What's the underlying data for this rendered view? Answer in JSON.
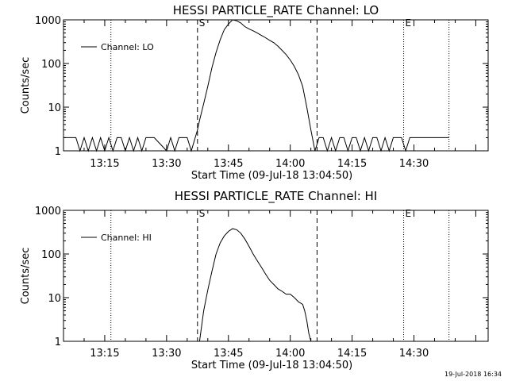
{
  "chart_data": [
    {
      "type": "line",
      "title": "HESSI PARTICLE_RATE Channel: LO",
      "xlabel": "Start Time (09-Jul-18 13:04:50)",
      "ylabel": "Counts/sec",
      "yscale": "log",
      "ylim": [
        1,
        1000
      ],
      "xlim_min": [
        5,
        108
      ],
      "x_tick_minutes": [
        15,
        30,
        45,
        60,
        75,
        90
      ],
      "x_tick_labels": [
        "13:15",
        "13:30",
        "13:45",
        "14:00",
        "14:15",
        "14:30"
      ],
      "y_tick_values": [
        1,
        10,
        100,
        1000
      ],
      "y_tick_labels": [
        "1",
        "10",
        "100",
        "1000"
      ],
      "legend": "Channel: LO",
      "legend_position": "top-left",
      "markers": [
        {
          "label": "S",
          "minute": 37.5,
          "style": "dashed"
        },
        {
          "label": "",
          "minute": 66.5,
          "style": "dashed"
        },
        {
          "label": "",
          "minute": 16.5,
          "style": "dotted"
        },
        {
          "label": "E",
          "minute": 87.5,
          "style": "dotted"
        },
        {
          "label": "",
          "minute": 98.5,
          "style": "dotted"
        }
      ],
      "series": [
        {
          "name": "Channel: LO",
          "x_minutes": [
            5,
            8,
            9,
            10,
            11,
            12,
            13,
            14,
            15,
            16,
            17,
            18,
            19,
            20,
            21,
            22,
            23,
            24,
            25,
            26,
            27,
            30,
            31,
            32,
            33,
            34,
            35,
            36,
            37.5,
            38,
            39,
            40,
            41,
            42,
            43,
            44,
            45,
            46,
            47,
            48,
            49,
            50,
            51,
            52,
            53,
            54,
            55,
            56,
            57,
            58,
            59,
            60,
            61,
            62,
            63,
            64,
            65,
            66,
            67,
            68,
            69,
            70,
            71,
            72,
            73,
            74,
            75,
            76,
            77,
            78,
            79,
            80,
            81,
            82,
            83,
            84,
            85,
            86,
            87,
            88,
            89,
            90,
            91,
            92,
            93,
            94,
            95,
            96,
            97,
            98.5
          ],
          "values": [
            2,
            2,
            1,
            2,
            1,
            2,
            1,
            2,
            1,
            2,
            1,
            2,
            2,
            1,
            2,
            1,
            2,
            1,
            2,
            2,
            2,
            1,
            2,
            1,
            2,
            2,
            2,
            1,
            3,
            5,
            12,
            30,
            80,
            180,
            350,
            600,
            800,
            1000,
            950,
            850,
            700,
            620,
            560,
            500,
            440,
            390,
            340,
            300,
            250,
            200,
            160,
            120,
            85,
            55,
            30,
            10,
            3,
            1,
            2,
            2,
            1,
            2,
            1,
            2,
            2,
            1,
            2,
            2,
            1,
            2,
            1,
            2,
            2,
            1,
            2,
            1,
            2,
            2,
            2,
            1,
            2,
            2,
            2,
            2,
            2,
            2,
            2,
            2,
            2,
            2
          ]
        }
      ]
    },
    {
      "type": "line",
      "title": "HESSI PARTICLE_RATE Channel: HI",
      "xlabel": "Start Time (09-Jul-18 13:04:50)",
      "ylabel": "Counts/sec",
      "yscale": "log",
      "ylim": [
        1,
        1000
      ],
      "xlim_min": [
        5,
        108
      ],
      "x_tick_minutes": [
        15,
        30,
        45,
        60,
        75,
        90
      ],
      "x_tick_labels": [
        "13:15",
        "13:30",
        "13:45",
        "14:00",
        "14:15",
        "14:30"
      ],
      "y_tick_values": [
        1,
        10,
        100,
        1000
      ],
      "y_tick_labels": [
        "1",
        "10",
        "100",
        "1000"
      ],
      "legend": "Channel: HI",
      "legend_position": "top-left",
      "markers": [
        {
          "label": "S",
          "minute": 37.5,
          "style": "dashed"
        },
        {
          "label": "",
          "minute": 66.5,
          "style": "dashed"
        },
        {
          "label": "",
          "minute": 16.5,
          "style": "dotted"
        },
        {
          "label": "E",
          "minute": 87.5,
          "style": "dotted"
        },
        {
          "label": "",
          "minute": 98.5,
          "style": "dotted"
        }
      ],
      "series": [
        {
          "name": "Channel: HI",
          "x_minutes": [
            38,
            39,
            40,
            41,
            42,
            43,
            44,
            45,
            46,
            47,
            48,
            49,
            50,
            51,
            52,
            53,
            54,
            55,
            56,
            57,
            58,
            59,
            60,
            61,
            62,
            63,
            63.5,
            64,
            64.5,
            65
          ],
          "values": [
            1,
            5,
            15,
            40,
            100,
            180,
            260,
            330,
            380,
            360,
            300,
            220,
            150,
            100,
            70,
            50,
            35,
            25,
            20,
            16,
            14,
            12,
            12,
            10,
            8,
            7,
            5,
            3,
            1.5,
            1
          ]
        }
      ]
    }
  ],
  "timestamp": "19-Jul-2018 16:34"
}
